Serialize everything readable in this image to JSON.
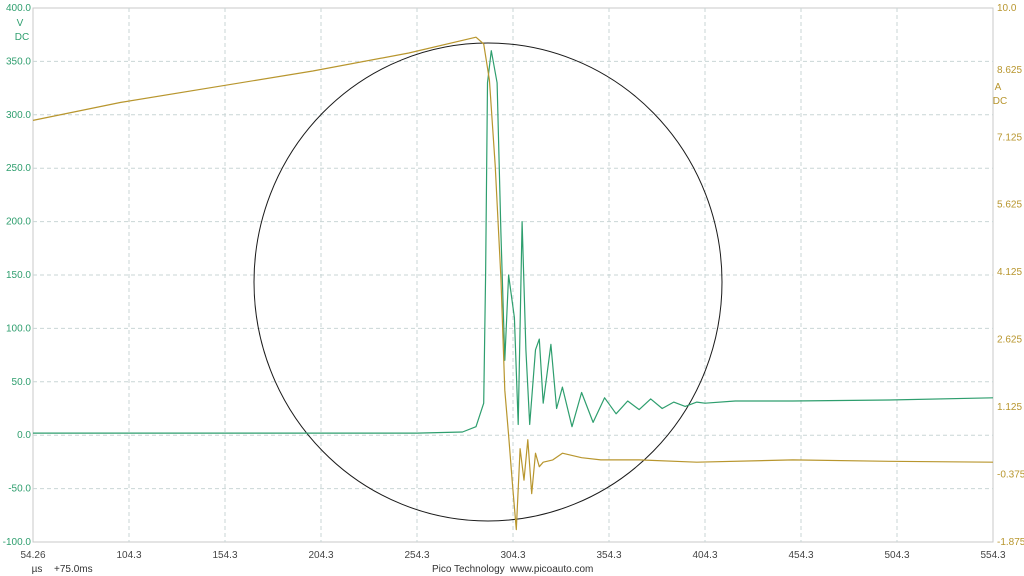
{
  "chart_data": {
    "type": "line",
    "x_unit": "µs",
    "x_offset": "+75.0ms",
    "x_ticks": [
      "54.26",
      "104.3",
      "154.3",
      "204.3",
      "254.3",
      "304.3",
      "354.3",
      "404.3",
      "454.3",
      "504.3",
      "554.3"
    ],
    "xlim": [
      54.26,
      554.3
    ],
    "left_axis": {
      "unit": "V",
      "coupling": "DC",
      "ticks": [
        "400.0",
        "350.0",
        "300.0",
        "250.0",
        "200.0",
        "150.0",
        "100.0",
        "50.0",
        "0.0",
        "-50.0",
        "-100.0"
      ],
      "ylim": [
        -100,
        400
      ],
      "color": "#2e9e6e"
    },
    "right_axis": {
      "unit": "A",
      "coupling": "DC",
      "ticks": [
        "10.0",
        "8.625",
        "7.125",
        "5.625",
        "4.125",
        "2.625",
        "1.125",
        "-0.375",
        "-1.875"
      ],
      "ylim": [
        -1.875,
        10.0
      ],
      "color": "#b8962e"
    },
    "grid": true,
    "annotation": "circle",
    "series": [
      {
        "axis": "left",
        "color": "#2e9e6e",
        "x": [
          54.26,
          150,
          254.3,
          278,
          285,
          289,
          290,
          291,
          293,
          296,
          298,
          300,
          302,
          305,
          307,
          309,
          311,
          313,
          316,
          318,
          320,
          324,
          327,
          330,
          335,
          340,
          346,
          352,
          358,
          364,
          370,
          376,
          382,
          388,
          394,
          400,
          404.3,
          420,
          450,
          500,
          554.3
        ],
        "y": [
          2,
          2,
          2,
          3,
          8,
          30,
          150,
          330,
          360,
          330,
          190,
          70,
          150,
          110,
          10,
          200,
          80,
          10,
          80,
          90,
          30,
          85,
          25,
          45,
          8,
          40,
          12,
          35,
          20,
          32,
          24,
          34,
          25,
          31,
          27,
          31,
          30,
          32,
          32,
          33,
          35
        ]
      },
      {
        "axis": "right",
        "color": "#b8962e",
        "x": [
          54.26,
          100,
          150,
          200,
          250,
          285,
          289,
          292,
          295,
          298,
          300,
          302,
          304,
          306,
          308,
          310,
          312,
          314,
          316,
          318,
          320,
          325,
          330,
          340,
          350,
          370,
          400,
          450,
          500,
          554.3
        ],
        "y": [
          7.5,
          7.9,
          8.25,
          8.6,
          9.0,
          9.35,
          9.2,
          8.4,
          6.5,
          4.0,
          1.5,
          0.5,
          -0.6,
          -1.6,
          0.2,
          -0.5,
          0.4,
          -0.8,
          0.1,
          -0.2,
          -0.1,
          -0.05,
          0.1,
          0.0,
          -0.05,
          -0.05,
          -0.1,
          -0.05,
          -0.08,
          -0.1
        ]
      }
    ]
  },
  "footer": {
    "unit": "µs",
    "offset": "+75.0ms",
    "brand": "Pico Technology",
    "url": "www.picoauto.com"
  }
}
